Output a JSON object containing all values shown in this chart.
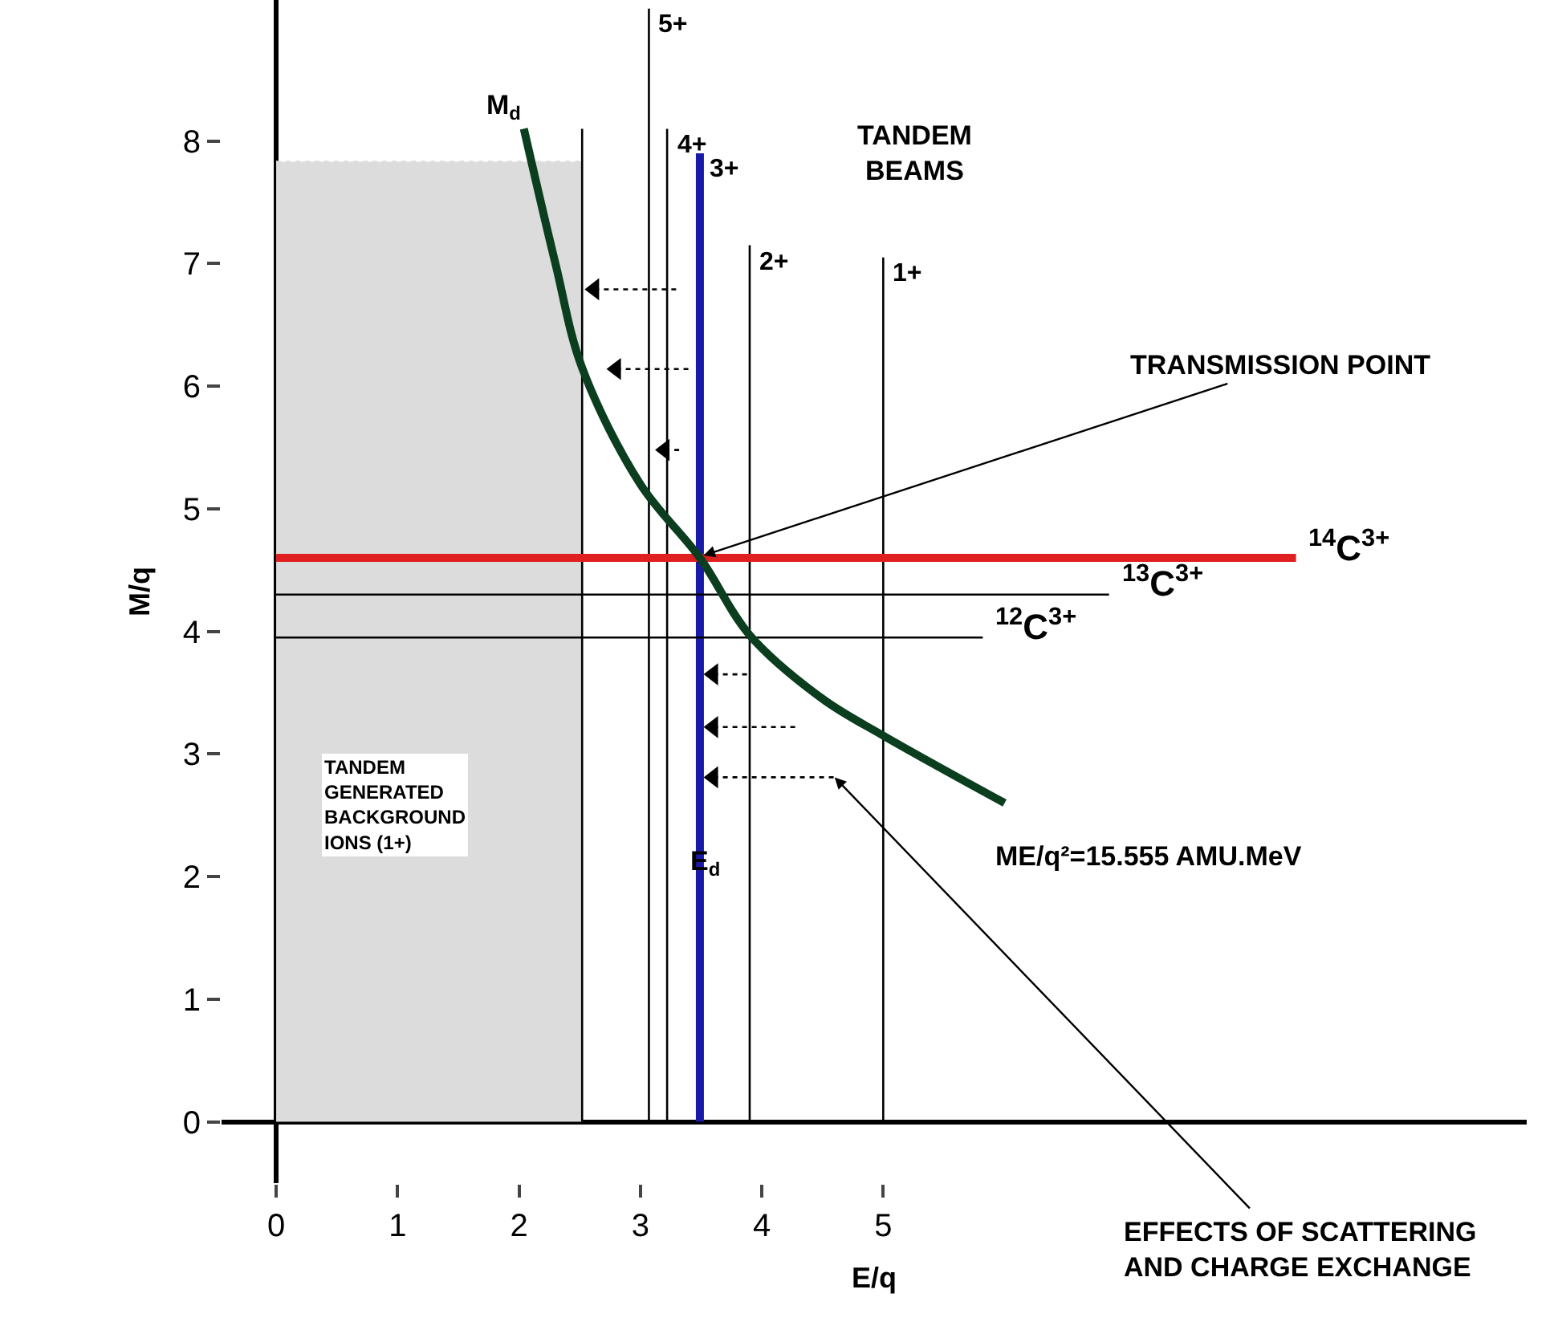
{
  "chart_data": {
    "type": "line",
    "xlabel": "E/q",
    "ylabel": "M/q",
    "xlim": [
      -0.45,
      10.3
    ],
    "ylim": [
      -0.5,
      9.15
    ],
    "xticks": [
      0,
      1,
      2,
      3,
      4,
      5
    ],
    "yticks": [
      0,
      1,
      2,
      3,
      4,
      5,
      6,
      7,
      8
    ],
    "series": [
      {
        "type": "area",
        "color": "#dcdcdc",
        "line_style": "dotted",
        "x": [
          0,
          2.52
        ],
        "values": [
          7.83,
          7.83
        ]
      },
      {
        "color": "#000000",
        "x": [
          2.52,
          2.52
        ],
        "values": [
          0,
          8.1
        ]
      },
      {
        "name": "5+",
        "color": "#000000",
        "x": [
          3.07,
          3.07
        ],
        "values": [
          0,
          9.08
        ]
      },
      {
        "name": "4+",
        "color": "#000000",
        "x": [
          3.22,
          3.22
        ],
        "values": [
          0,
          8.1
        ]
      },
      {
        "name": "3+",
        "color": "#1a1aa8",
        "x": [
          3.49,
          3.49
        ],
        "values": [
          0,
          7.9
        ]
      },
      {
        "name": "2+",
        "color": "#000000",
        "x": [
          3.9,
          3.9
        ],
        "values": [
          0,
          7.15
        ]
      },
      {
        "name": "1+",
        "color": "#000000",
        "x": [
          5.0,
          5.0
        ],
        "values": [
          0,
          7.05
        ]
      },
      {
        "name": "$^{14}$C$^{3+}$",
        "color": "#e02020",
        "x": [
          0,
          8.4
        ],
        "values": [
          4.6,
          4.6
        ]
      },
      {
        "name": "$^{13}$C$^{3+}$",
        "color": "#000000",
        "x": [
          0,
          6.86
        ],
        "values": [
          4.3,
          4.3
        ]
      },
      {
        "name": "$^{12}$C$^{3+}$",
        "color": "#000000",
        "x": [
          0,
          5.82
        ],
        "values": [
          3.95,
          3.95
        ]
      },
      {
        "name": "ME/q²=15.555 AMU.MeV",
        "color": "#0b3d1f",
        "x": [
          2.04,
          2.3,
          2.52,
          3.0,
          3.49,
          3.9,
          4.5,
          5.0,
          6.0
        ],
        "values": [
          8.1,
          7.0,
          6.15,
          5.2,
          4.6,
          3.97,
          3.45,
          3.15,
          2.6
        ]
      },
      {
        "color": "#000000",
        "line_style": "dotted",
        "marker": "triangle",
        "x": [
          2.62,
          3.3,
          null,
          2.8,
          3.4,
          null,
          3.2,
          3.32,
          null,
          3.6,
          3.9,
          null,
          3.6,
          4.3,
          null,
          3.6,
          4.6
        ],
        "values": [
          6.79,
          6.79,
          null,
          6.14,
          6.14,
          null,
          5.48,
          5.48,
          null,
          3.65,
          3.65,
          null,
          3.22,
          3.22,
          null,
          2.81,
          2.81
        ]
      }
    ],
    "annotations": [
      {
        "text": "M$_{d}$",
        "x": 2.04,
        "y": 8.1
      },
      {
        "text": "E$_{d}$",
        "x": 3.49,
        "y": 2.1
      },
      "TANDEM\nBEAMS",
      {
        "text": "TRANSMISSION POINT",
        "x": 3.52,
        "y": 4.62
      },
      "EFFECTS OF SCATTERING\nAND CHARGE EXCHANGE",
      "TANDEM\nGENERATED\nBACKGROUND\nIONS (1+)"
    ]
  }
}
